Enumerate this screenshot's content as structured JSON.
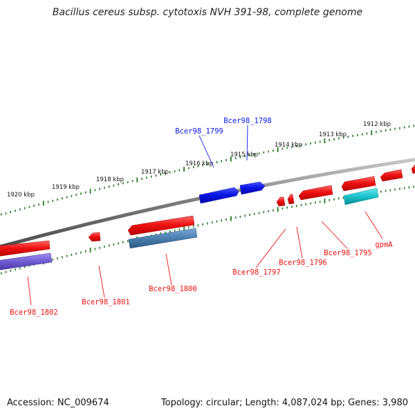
{
  "title": "Bacillus cereus subsp. cytotoxis NVH 391-98, complete genome",
  "footer": {
    "accession": "Accession: NC_009674",
    "topology": "Topology: circular; Length: 4,087,024 bp; Genes: 3,980"
  },
  "kbp_labels": [
    "1912 kbp",
    "1913 kbp",
    "1914 kbp",
    "1915 kbp",
    "1916 kbp",
    "1917 kbp",
    "1918 kbp",
    "1919 kbp",
    "1920 kbp"
  ],
  "gene_labels": {
    "g1799": "Bcer98_1799",
    "g1798": "Bcer98_1798",
    "g1802": "Bcer98_1802",
    "g1801": "Bcer98_1801",
    "g1800": "Bcer98_1800",
    "g1797": "Bcer98_1797",
    "g1796": "Bcer98_1796",
    "g1795": "Bcer98_1795",
    "gpmA": "gpmA"
  },
  "colors": {
    "backbone": "#8a8a8a",
    "tick": "#1e7a1e",
    "forward_gene": "#0a16e6",
    "reverse_gene": "#ee1111",
    "steel_gene": "#4b7fb0",
    "cyan_gene": "#19c3cc",
    "purple_gene": "#6f5bd0"
  }
}
